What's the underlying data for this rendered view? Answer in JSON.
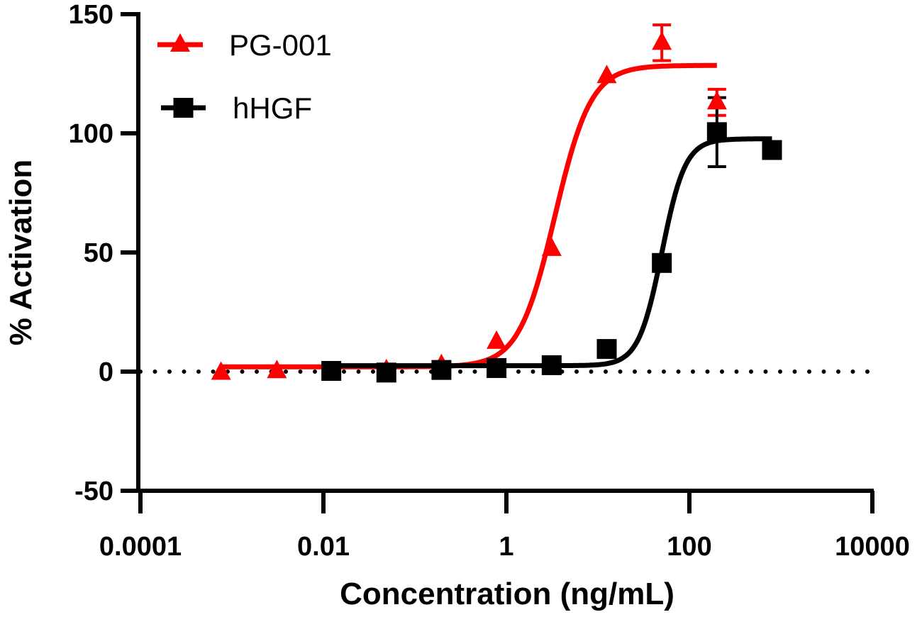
{
  "chart_data": {
    "type": "line",
    "title": "",
    "xlabel": "Concentration (ng/mL)",
    "ylabel": "% Activation",
    "xscale": "log",
    "xlim": [
      0.0001,
      10000
    ],
    "ylim": [
      -50,
      150
    ],
    "x_ticks": [
      0.0001,
      0.01,
      1,
      100,
      10000
    ],
    "x_tick_labels": [
      "0.0001",
      "0.01",
      "1",
      "100",
      "10000"
    ],
    "y_ticks": [
      -50,
      0,
      50,
      100,
      150
    ],
    "y_tick_labels": [
      "-50",
      "0",
      "50",
      "100",
      "150"
    ],
    "reference_line": {
      "y": 0,
      "style": "dotted"
    },
    "legend": {
      "position": "top-left",
      "entries": [
        "PG-001",
        "hHGF"
      ]
    },
    "series": [
      {
        "name": "PG-001",
        "color": "#ff0000",
        "marker": "triangle",
        "x": [
          0.00076,
          0.0031,
          0.0122,
          0.0488,
          0.195,
          0.78,
          3.125,
          12.5,
          50,
          200
        ],
        "y": [
          -0.5,
          0.2,
          -0.5,
          0.6,
          2.7,
          12.5,
          51.5,
          124,
          138,
          113
        ],
        "error": [
          null,
          null,
          null,
          null,
          null,
          null,
          null,
          null,
          7.5,
          5.5
        ],
        "fit": {
          "bottom": 2,
          "top": 128.5,
          "log_ec50": 0.53,
          "hill": 2.2,
          "x_range": [
            0.00076,
            200
          ]
        }
      },
      {
        "name": "hHGF",
        "color": "#000000",
        "marker": "square",
        "x": [
          0.0122,
          0.0488,
          0.195,
          0.78,
          3.125,
          12.5,
          50,
          200,
          800
        ],
        "y": [
          0.3,
          -0.4,
          0.7,
          1.5,
          2.7,
          9.5,
          45.6,
          100.5,
          93
        ],
        "error": [
          null,
          null,
          null,
          null,
          null,
          null,
          null,
          14.5,
          null
        ],
        "fit": {
          "bottom": 2.5,
          "top": 97.7,
          "log_ec50": 1.7,
          "hill": 3.4,
          "x_range": [
            0.0122,
            800
          ]
        }
      }
    ]
  }
}
